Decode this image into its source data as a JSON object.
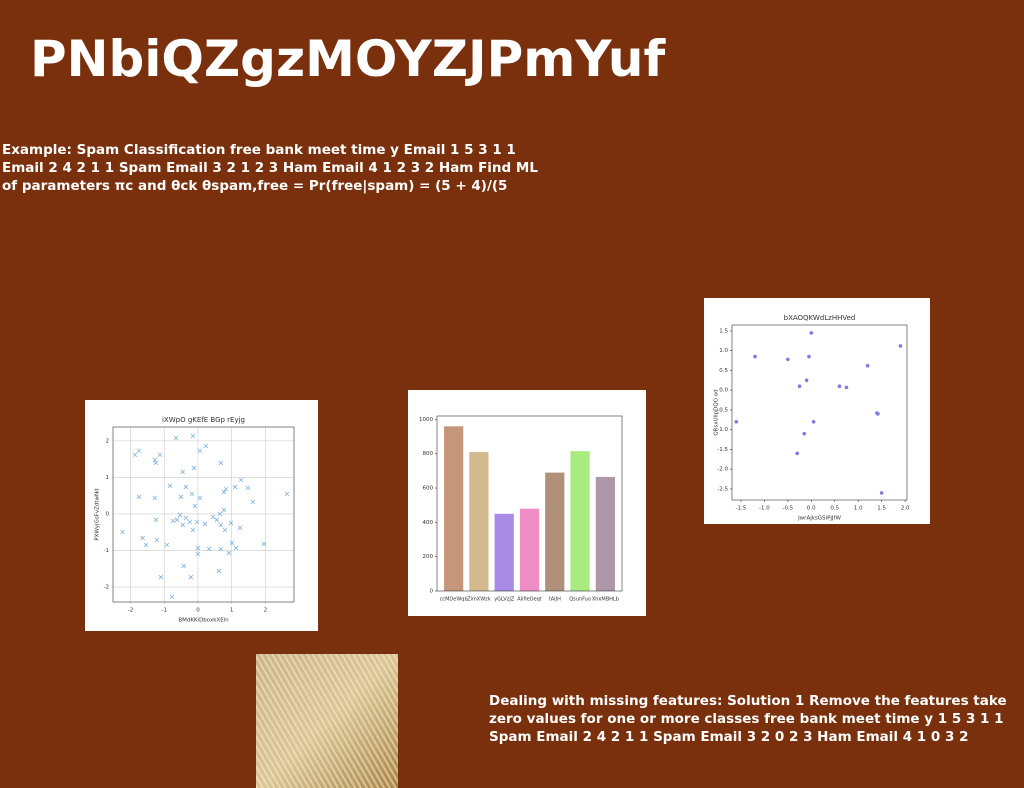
{
  "header": {
    "title": "PNbiQZgzMOYZJPmYuf"
  },
  "paragraphs": [
    "Example: Spam Classification free bank meet time y Email 1 5 3 1 1 Email 2 4 2 1 1 Spam Email 3 2 1 2 3 Ham Email 4 1 2 3 2 Ham Find ML of parameters πc and θck θspam,free = Pr(free|spam) = (5 + 4)/(5",
    "Dealing with missing features: Solution 1 Remove the features take zero values for one or more classes free bank meet time y 1 5 3 1 1 Spam Email 2 4 2 1 1 Spam Email 3 2 0 2 3 Ham Email 4 1 0 3 2"
  ],
  "chart_data": [
    {
      "type": "scatter",
      "title": "iXWpO gKEfE BGp rEyjg",
      "x_label": "BMdKKiDboxkXEln",
      "y_label": "PXWyjGsFvZdtwNd",
      "marker": "x",
      "color": "#7fb2e0",
      "grid": true,
      "xlim": [
        -2.52,
        2.85
      ],
      "ylim": [
        -2.41,
        2.38
      ],
      "xticks": [
        -2,
        -1,
        0,
        1,
        2
      ],
      "yticks": [
        -2,
        -1,
        0,
        1,
        2
      ],
      "x": [
        -1.87,
        -1.75,
        -1.28,
        -1.25,
        -1.13,
        -0.65,
        -0.15,
        0.24,
        -0.45,
        -0.12,
        0.06,
        0.68,
        -1.75,
        -1.28,
        -0.83,
        -0.36,
        -0.5,
        -0.18,
        0.06,
        -0.09,
        0.77,
        0.83,
        1.1,
        1.28,
        1.48,
        1.63,
        2.64,
        -2.24,
        -1.64,
        -1.54,
        -1.22,
        -1.25,
        -0.92,
        -0.74,
        -0.62,
        -0.53,
        -0.45,
        -0.36,
        -0.24,
        -0.15,
        -0.03,
        0,
        0,
        0.21,
        0.33,
        0.45,
        0.56,
        0.65,
        0.68,
        0.77,
        0.8,
        0.98,
        1.01,
        1.25,
        0.92,
        0.68,
        0.62,
        -0.42,
        -1.1,
        -0.21,
        -0.77,
        1.96,
        1.13
      ],
      "y": [
        1.62,
        1.73,
        1.48,
        1.4,
        1.62,
        2.08,
        2.14,
        1.86,
        1.15,
        1.26,
        1.73,
        1.4,
        0.47,
        0.44,
        0.77,
        0.74,
        0.47,
        0.55,
        0.44,
        0.22,
        0.6,
        0.68,
        0.74,
        0.93,
        0.71,
        0.33,
        0.55,
        -0.49,
        -0.66,
        -0.85,
        -0.71,
        -0.16,
        -0.85,
        -0.19,
        -0.16,
        -0.03,
        -0.3,
        -0.11,
        -0.22,
        -0.44,
        -0.22,
        -0.93,
        -1.1,
        -0.27,
        -0.96,
        -0.08,
        -0.16,
        0,
        -0.3,
        0.11,
        -0.44,
        -0.25,
        -0.79,
        -0.38,
        -1.07,
        -0.96,
        -1.56,
        -1.42,
        -1.73,
        -1.73,
        -2.27,
        -0.82,
        -0.93
      ]
    },
    {
      "type": "bar",
      "categories": [
        "ccMDeWqb",
        "ZlmXWzk",
        "yGLVzJZ",
        "AIifieDeqt",
        "tAIJH",
        "QsunFuo",
        "XhxMBHLb"
      ],
      "values": [
        960,
        810,
        450,
        480,
        690,
        815,
        665
      ],
      "colors": [
        "#c4967a",
        "#d4b88e",
        "#a98ae6",
        "#f08cc4",
        "#b09078",
        "#a8ec80",
        "#ae98a8"
      ],
      "ylim": [
        0,
        1020
      ],
      "yticks": [
        0,
        200,
        400,
        600,
        800,
        1000
      ]
    },
    {
      "type": "scatter",
      "title": "bXAOQKWdLzHHVed",
      "x_label": "JwrAjksGSiPjJfW",
      "y_label": "QRsxUllpDQO od",
      "marker": "o",
      "color": "#7b7be0",
      "grid": false,
      "xlim": [
        -1.69,
        2.04
      ],
      "ylim": [
        -2.78,
        1.65
      ],
      "xticks": [
        -1.5,
        {
          "value": -1,
          "label": "-1.0"
        },
        -0.5,
        {
          "value": 0,
          "label": "0.0"
        },
        0.5,
        {
          "value": 1,
          "label": "1.0"
        },
        1.5,
        {
          "value": 2,
          "label": "2.0"
        }
      ],
      "yticks": [
        1.5,
        {
          "value": 1,
          "label": "1.0"
        },
        0.5,
        {
          "value": 0,
          "label": "0.0"
        },
        -0.5,
        {
          "value": -1,
          "label": "-1.0"
        },
        -1.5,
        {
          "value": -2,
          "label": "-2.0"
        },
        -2.5
      ],
      "x": [
        -1.6,
        -1.2,
        -0.5,
        -0.3,
        -0.25,
        -0.15,
        -0.1,
        -0.05,
        0,
        0.05,
        0.6,
        0.75,
        1.2,
        1.4,
        1.42,
        1.5,
        1.9
      ],
      "y": [
        -0.8,
        0.85,
        0.78,
        -1.6,
        0.1,
        -1.1,
        0.25,
        0.85,
        1.45,
        -0.8,
        0.1,
        0.07,
        0.62,
        -0.58,
        -0.6,
        -2.6,
        1.12
      ]
    }
  ]
}
